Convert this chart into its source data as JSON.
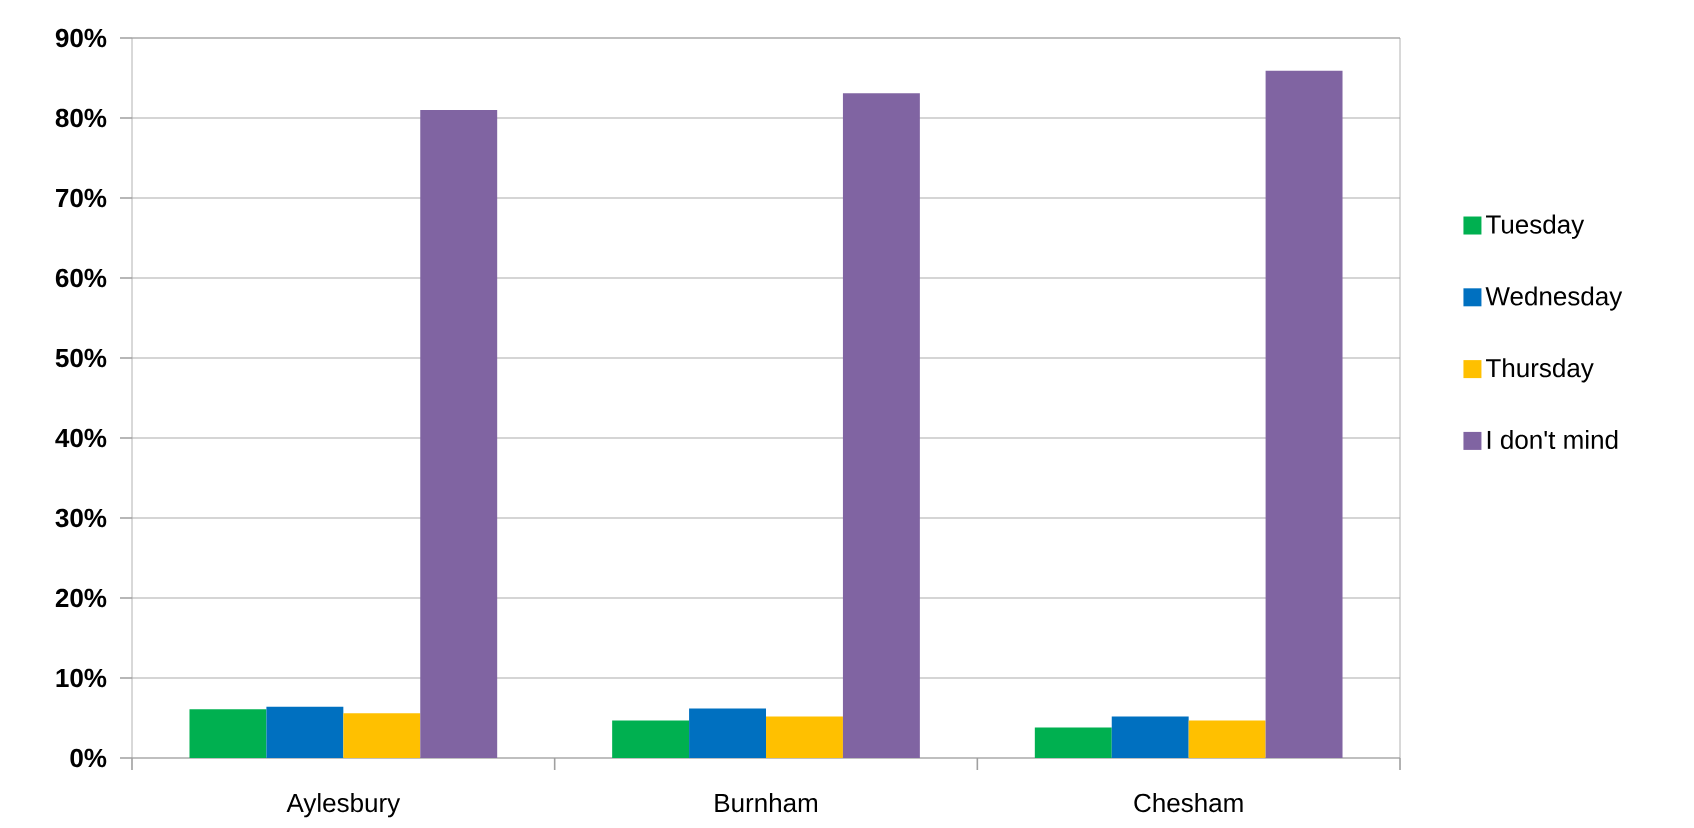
{
  "chart_data": {
    "type": "bar",
    "categories": [
      "Aylesbury",
      "Burnham",
      "Chesham"
    ],
    "series": [
      {
        "name": "Tuesday",
        "color": "#00b050",
        "values": [
          6.1,
          4.7,
          3.8
        ]
      },
      {
        "name": "Wednesday",
        "color": "#0070c0",
        "values": [
          6.4,
          6.2,
          5.2
        ]
      },
      {
        "name": "Thursday",
        "color": "#ffc000",
        "values": [
          5.6,
          5.2,
          4.7
        ]
      },
      {
        "name": "I don't mind",
        "color": "#8064a2",
        "values": [
          81.0,
          83.1,
          85.9
        ]
      }
    ],
    "ylim": [
      0,
      90
    ],
    "yticks": [
      {
        "value": 0,
        "label": "0%"
      },
      {
        "value": 10,
        "label": "10%"
      },
      {
        "value": 20,
        "label": "20%"
      },
      {
        "value": 30,
        "label": "30%"
      },
      {
        "value": 40,
        "label": "40%"
      },
      {
        "value": 50,
        "label": "50%"
      },
      {
        "value": 60,
        "label": "60%"
      },
      {
        "value": 70,
        "label": "70%"
      },
      {
        "value": 80,
        "label": "80%"
      },
      {
        "value": 90,
        "label": "90%"
      }
    ],
    "grid": "y",
    "legend": "right"
  }
}
